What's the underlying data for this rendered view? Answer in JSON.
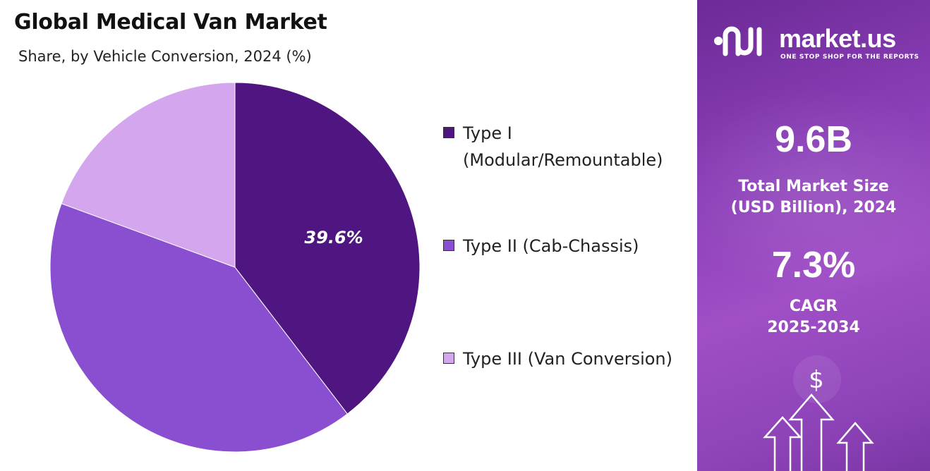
{
  "colors": {
    "type1": "#4f1580",
    "type2": "#8a4fd0",
    "type3": "#d3a6ee",
    "panel_accent": "#8b3fb8"
  },
  "chart_data": {
    "type": "pie",
    "title": "Global Medical Van Market",
    "subtitle": "Share, by Vehicle Conversion, 2024 (%)",
    "categories": [
      "Type I (Modular/Remountable)",
      "Type II (Cab-Chassis)",
      "Type III (Van Conversion)"
    ],
    "values": [
      39.6,
      41.0,
      19.4
    ],
    "data_labels": [
      "39.6%",
      "",
      ""
    ],
    "start_angle_deg": 0,
    "direction": "clockwise",
    "legend_position": "right"
  },
  "legend": {
    "items": [
      {
        "line1": "Type I",
        "line2": "(Modular/Remountable)"
      },
      {
        "line1": "Type II (Cab-Chassis)",
        "line2": ""
      },
      {
        "line1": "Type III (Van Conversion)",
        "line2": ""
      }
    ]
  },
  "panel": {
    "logo_text": "market.us",
    "logo_tagline": "ONE STOP SHOP FOR THE REPORTS",
    "logo_icon": "market-us-logo-icon",
    "market_size_value": "9.6B",
    "market_size_label_1": "Total Market Size",
    "market_size_label_2": "(USD Billion), 2024",
    "cagr_value": "7.3%",
    "cagr_label_1": "CAGR",
    "cagr_label_2": "2025-2034",
    "decoration_icons": [
      "dollar-icon",
      "arrow-up-icon"
    ],
    "dollar_symbol": "$"
  }
}
